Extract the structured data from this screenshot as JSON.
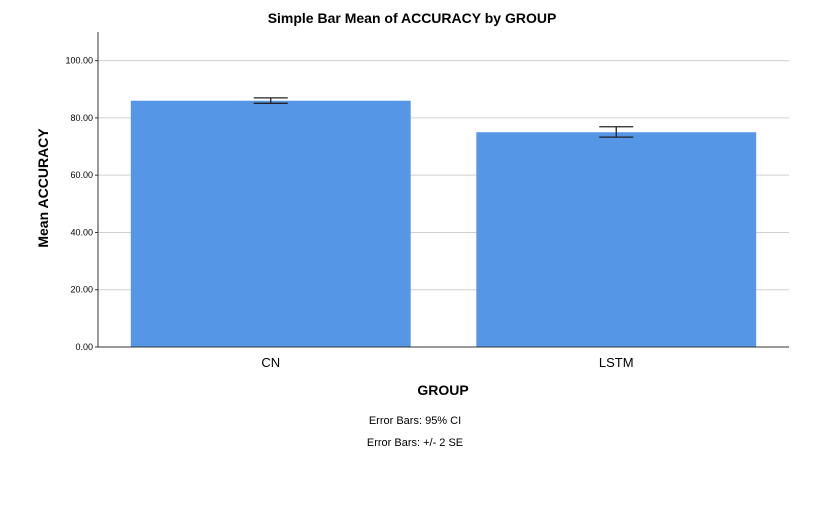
{
  "chart_data": {
    "type": "bar",
    "title": "Simple Bar Mean of ACCURACY by GROUP",
    "xlabel": "GROUP",
    "ylabel": "Mean ACCURACY",
    "categories": [
      "CN",
      "LSTM"
    ],
    "values": [
      86.0,
      75.0
    ],
    "error_bars": [
      {
        "low": 85.1,
        "high": 87.0
      },
      {
        "low": 73.3,
        "high": 76.9
      }
    ],
    "ylim": [
      0,
      110
    ],
    "yticks": [
      0,
      20,
      40,
      60,
      80,
      100
    ],
    "ytick_labels": [
      "0.00",
      "20.00",
      "40.00",
      "60.00",
      "80.00",
      "100.00"
    ],
    "grid": true,
    "notes": [
      "Error Bars: 95% CI",
      "Error Bars: +/- 2 SE"
    ],
    "colors": {
      "bar": "#5596E6",
      "grid": "#d0d0d0",
      "axis": "#333333"
    }
  }
}
